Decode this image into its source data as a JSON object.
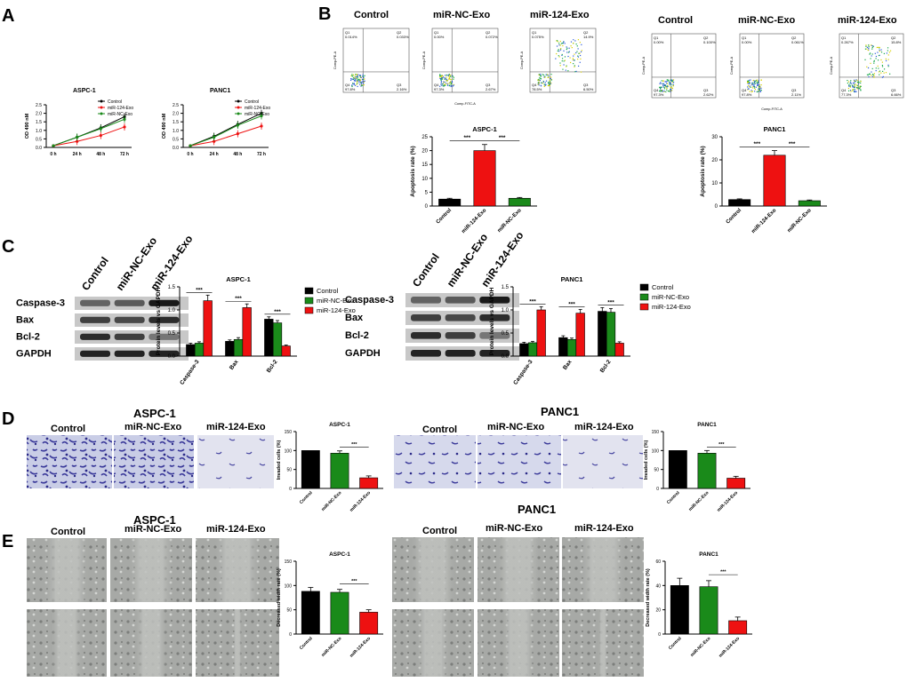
{
  "panel_letters": [
    "A",
    "B",
    "C",
    "D",
    "E"
  ],
  "colors": {
    "control": "#000000",
    "nc": "#1a8a1a",
    "mir124": "#ee1111"
  },
  "flow": {
    "headers": [
      "Control",
      "miR-NC-Exo",
      "miR-124-Exo"
    ],
    "x_axis": "Comp-FITC-A",
    "y_axis": "Comp-PE-A",
    "aspc1_quadrants": [
      {
        "q1": "0.014%",
        "q2": "0.033%",
        "q3": "2.16%",
        "q4": "97.8%"
      },
      {
        "q1": "0.00%",
        "q2": "0.072%",
        "q3": "2.67%",
        "q4": "97.3%"
      },
      {
        "q1": "0.075%",
        "q2": "14.9%",
        "q3": "6.50%",
        "q4": "78.5%"
      }
    ],
    "panc1_quadrants": [
      {
        "q1": "0.00%",
        "q2": "0.100%",
        "q3": "2.62%",
        "q4": "97.3%"
      },
      {
        "q1": "0.00%",
        "q2": "0.061%",
        "q3": "2.11%",
        "q4": "97.8%"
      },
      {
        "q1": "0.267%",
        "q2": "15.8%",
        "q3": "6.66%",
        "q4": "77.3%"
      }
    ]
  },
  "blot": {
    "cols": [
      "Control",
      "miR-NC-Exo",
      "miR-124-Exo"
    ],
    "rows": [
      "Caspase-3",
      "Bax",
      "Bcl-2",
      "GAPDH"
    ]
  },
  "image_headers": {
    "aspc1_title": "ASPC-1",
    "panc1_title": "PANC1",
    "cols": [
      "Control",
      "miR-NC-Exo",
      "miR-124-Exo"
    ]
  },
  "sig": "***",
  "chart_data": [
    {
      "id": "A1",
      "type": "line",
      "title": "ASPC-1",
      "ylabel": "OD 490 nM",
      "categories": [
        "0 h",
        "24 h",
        "48 h",
        "72 h"
      ],
      "ylim": [
        0,
        2.5
      ],
      "yticks": [
        "0.0",
        "0.5",
        "1.0",
        "1.5",
        "2.0",
        "2.5"
      ],
      "series": [
        {
          "name": "Control",
          "values": [
            0.1,
            0.6,
            1.15,
            1.8
          ]
        },
        {
          "name": "miR-124-Exo",
          "values": [
            0.1,
            0.35,
            0.7,
            1.2
          ]
        },
        {
          "name": "miR-NC-Exo",
          "values": [
            0.1,
            0.6,
            1.1,
            1.65
          ]
        }
      ],
      "legend": "top-right"
    },
    {
      "id": "A2",
      "type": "line",
      "title": "PANC1",
      "ylabel": "OD 490 nM",
      "categories": [
        "0 h",
        "24 h",
        "48 h",
        "72 h"
      ],
      "ylim": [
        0,
        2.5
      ],
      "yticks": [
        "0.0",
        "0.5",
        "1.0",
        "1.5",
        "2.0",
        "2.5"
      ],
      "series": [
        {
          "name": "Control",
          "values": [
            0.1,
            0.65,
            1.35,
            2.0
          ]
        },
        {
          "name": "miR-124-Exo",
          "values": [
            0.1,
            0.35,
            0.8,
            1.25
          ]
        },
        {
          "name": "miR-NC-Exo",
          "values": [
            0.1,
            0.6,
            1.3,
            1.85
          ]
        }
      ],
      "legend": "top-right"
    },
    {
      "id": "B1",
      "type": "bar",
      "title": "ASPC-1",
      "ylabel": "Apoptosis rate (%)",
      "categories": [
        "Control",
        "miR-124-Exo",
        "miR-NC-Exo"
      ],
      "values": [
        2.5,
        20,
        2.8
      ],
      "errors": [
        0.3,
        2.2,
        0.3
      ],
      "ylim": [
        0,
        25
      ],
      "yticks": [
        "0",
        "5",
        "10",
        "15",
        "20",
        "25"
      ]
    },
    {
      "id": "B2",
      "type": "bar",
      "title": "PANC1",
      "ylabel": "Apoptosis rate (%)",
      "categories": [
        "Control",
        "miR-124-Exo",
        "miR-NC-Exo"
      ],
      "values": [
        2.8,
        22,
        2.3
      ],
      "errors": [
        0.3,
        2.0,
        0.3
      ],
      "ylim": [
        0,
        30
      ],
      "yticks": [
        "0",
        "10",
        "20",
        "30"
      ]
    },
    {
      "id": "C1",
      "type": "bar",
      "title": "ASPC-1",
      "ylabel": "Protein levels vs GAPDH",
      "categories": [
        "Caspase-3",
        "Bax",
        "Bcl-2"
      ],
      "ylim": [
        0,
        1.5
      ],
      "yticks": [
        "0.0",
        "0.5",
        "1.0",
        "1.5"
      ],
      "series": [
        {
          "name": "Control",
          "values": [
            0.25,
            0.32,
            0.8
          ],
          "errors": [
            0.03,
            0.03,
            0.05
          ]
        },
        {
          "name": "miR-NC-Exo",
          "values": [
            0.28,
            0.36,
            0.72
          ],
          "errors": [
            0.03,
            0.04,
            0.05
          ]
        },
        {
          "name": "miR-124-Exo",
          "values": [
            1.2,
            1.05,
            0.22
          ],
          "errors": [
            0.12,
            0.08,
            0.02
          ]
        }
      ],
      "legend": "right"
    },
    {
      "id": "C2",
      "type": "bar",
      "title": "PANC1",
      "ylabel": "Protein levels vs GAPDH",
      "categories": [
        "Caspase-3",
        "Bax",
        "Bcl-2"
      ],
      "ylim": [
        0,
        1.5
      ],
      "yticks": [
        "0.0",
        "0.5",
        "1.0",
        "1.5"
      ],
      "series": [
        {
          "name": "Control",
          "values": [
            0.27,
            0.4,
            0.97
          ],
          "errors": [
            0.03,
            0.04,
            0.08
          ]
        },
        {
          "name": "miR-NC-Exo",
          "values": [
            0.29,
            0.36,
            0.95
          ],
          "errors": [
            0.03,
            0.03,
            0.08
          ]
        },
        {
          "name": "miR-124-Exo",
          "values": [
            1.0,
            0.93,
            0.28
          ],
          "errors": [
            0.07,
            0.08,
            0.03
          ]
        }
      ],
      "legend": "right"
    },
    {
      "id": "D1",
      "type": "bar",
      "title": "ASPC-1",
      "ylabel": "Invaded cells (%)",
      "categories": [
        "Control",
        "miR-NC-Exo",
        "miR-124-Exo"
      ],
      "values": [
        100,
        93,
        28
      ],
      "errors": [
        0,
        6,
        5
      ],
      "ylim": [
        0,
        150
      ],
      "yticks": [
        "0",
        "50",
        "100",
        "150"
      ]
    },
    {
      "id": "D2",
      "type": "bar",
      "title": "PANC1",
      "ylabel": "Invaded cells (%)",
      "categories": [
        "Control",
        "miR-NC-Exo",
        "miR-124-Exo"
      ],
      "values": [
        100,
        93,
        27
      ],
      "errors": [
        0,
        7,
        5
      ],
      "ylim": [
        0,
        150
      ],
      "yticks": [
        "0",
        "50",
        "100",
        "150"
      ]
    },
    {
      "id": "E1",
      "type": "bar",
      "title": "ASPC-1",
      "ylabel": "Decreased width rate (%)",
      "categories": [
        "Control",
        "miR-NC-Exo",
        "miR-124-Exo"
      ],
      "values": [
        88,
        86,
        45
      ],
      "errors": [
        8,
        6,
        5
      ],
      "ylim": [
        0,
        150
      ],
      "yticks": [
        "0",
        "50",
        "100",
        "150"
      ]
    },
    {
      "id": "E2",
      "type": "bar",
      "title": "PANC1",
      "ylabel": "Decreased width rate (%)",
      "categories": [
        "Control",
        "miR-NC-Exo",
        "miR-124-Exo"
      ],
      "values": [
        40,
        39,
        11
      ],
      "errors": [
        6,
        5,
        3
      ],
      "ylim": [
        0,
        60
      ],
      "yticks": [
        "0",
        "20",
        "40",
        "60"
      ]
    }
  ]
}
